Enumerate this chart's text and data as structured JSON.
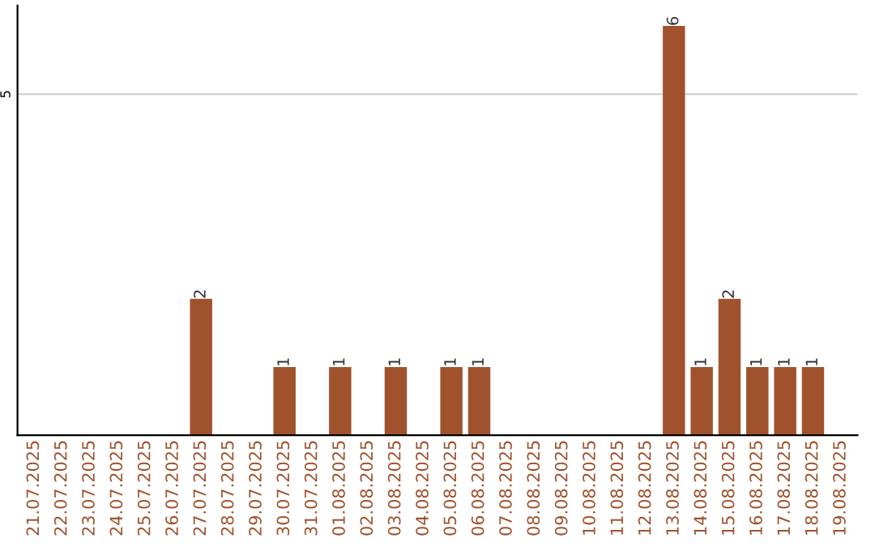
{
  "chart_data": {
    "type": "bar",
    "categories": [
      "21.07.2025",
      "22.07.2025",
      "23.07.2025",
      "24.07.2025",
      "25.07.2025",
      "26.07.2025",
      "27.07.2025",
      "28.07.2025",
      "29.07.2025",
      "30.07.2025",
      "31.07.2025",
      "01.08.2025",
      "02.08.2025",
      "03.08.2025",
      "04.08.2025",
      "05.08.2025",
      "06.08.2025",
      "07.08.2025",
      "08.08.2025",
      "09.08.2025",
      "10.08.2025",
      "11.08.2025",
      "12.08.2025",
      "13.08.2025",
      "14.08.2025",
      "15.08.2025",
      "16.08.2025",
      "17.08.2025",
      "18.08.2025",
      "19.08.2025"
    ],
    "values": [
      0,
      0,
      0,
      0,
      0,
      0,
      2,
      0,
      0,
      1,
      0,
      1,
      0,
      1,
      0,
      1,
      1,
      0,
      0,
      0,
      0,
      0,
      0,
      6,
      1,
      2,
      1,
      1,
      1,
      0
    ],
    "value_labels": [
      null,
      null,
      null,
      null,
      null,
      null,
      "2",
      null,
      null,
      "1",
      null,
      "1",
      null,
      "1",
      null,
      "1",
      "1",
      null,
      null,
      null,
      null,
      null,
      null,
      "6",
      "1",
      "2",
      "1",
      "1",
      "1",
      null
    ],
    "color": "#a0522d",
    "ylim": [
      0,
      6.3
    ],
    "yticks": [
      5
    ],
    "grid": "y"
  }
}
